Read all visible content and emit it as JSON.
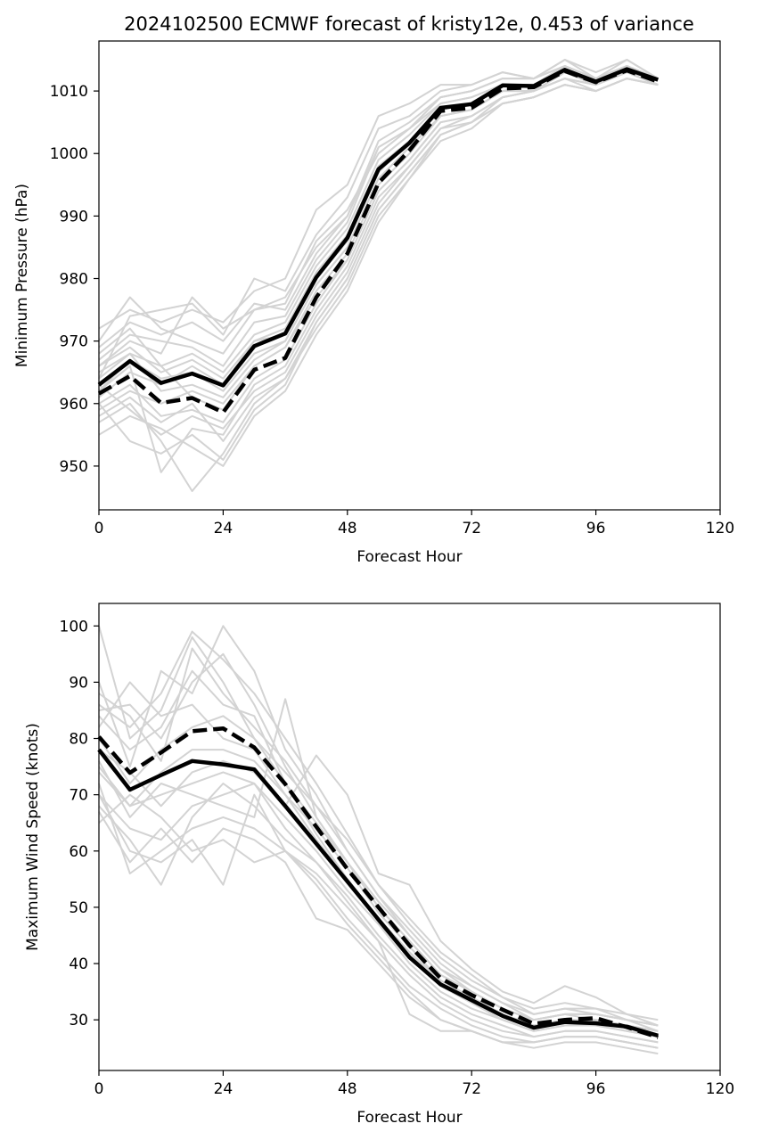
{
  "chart_data": [
    {
      "type": "line",
      "title": "2024102500 ECMWF forecast of kristy12e, 0.453 of variance",
      "xlabel": "Forecast Hour",
      "ylabel": "Minimum Pressure (hPa)",
      "xlim": [
        0,
        120
      ],
      "ylim": [
        943,
        1018
      ],
      "xticks": [
        0,
        24,
        48,
        72,
        96,
        120
      ],
      "yticks": [
        950,
        960,
        970,
        980,
        990,
        1000,
        1010
      ],
      "x": [
        0,
        6,
        12,
        18,
        24,
        30,
        36,
        42,
        48,
        54,
        60,
        66,
        72,
        78,
        84,
        90,
        96,
        102,
        108
      ],
      "series": [
        {
          "style": "solid",
          "color": "#000000",
          "values": [
            963.0,
            966.8,
            963.3,
            964.8,
            962.9,
            969.2,
            971.2,
            980.2,
            986.5,
            997.5,
            1001.7,
            1007.3,
            1007.9,
            1010.9,
            1010.8,
            1013.4,
            1011.5,
            1013.5,
            1011.8
          ]
        },
        {
          "style": "dashed",
          "color": "#000000",
          "values": [
            961.6,
            964.4,
            960.1,
            960.9,
            958.6,
            965.4,
            967.3,
            977.0,
            984.0,
            995.3,
            1000.5,
            1006.8,
            1007.3,
            1010.4,
            1010.6,
            1013.2,
            1011.4,
            1013.3,
            1011.5
          ]
        }
      ],
      "ensemble_color": "#d3d3d3",
      "ensemble": [
        [
          965,
          968,
          962,
          963,
          961,
          967,
          970,
          979,
          985,
          996,
          1001,
          1006,
          1007,
          1010,
          1011,
          1013,
          1011,
          1013,
          1012
        ],
        [
          968,
          972,
          966,
          968,
          965,
          971,
          973,
          982,
          988,
          999,
          1003,
          1008,
          1009,
          1011,
          1011,
          1014,
          1012,
          1014,
          1012
        ],
        [
          960,
          963,
          958,
          959,
          957,
          964,
          967,
          976,
          983,
          994,
          999,
          1005,
          1006,
          1009,
          1010,
          1012,
          1011,
          1013,
          1011
        ],
        [
          970,
          977,
          972,
          970,
          968,
          975,
          977,
          985,
          990,
          1002,
          1005,
          1009,
          1010,
          1012,
          1012,
          1015,
          1012,
          1015,
          1012
        ],
        [
          957,
          960,
          954,
          946,
          952,
          960,
          964,
          973,
          980,
          991,
          997,
          1003,
          1005,
          1008,
          1009,
          1011,
          1010,
          1012,
          1011
        ],
        [
          962,
          966,
          949,
          956,
          955,
          963,
          966,
          975,
          982,
          993,
          998,
          1004,
          1006,
          1009,
          1010,
          1012,
          1011,
          1013,
          1011
        ],
        [
          966,
          970,
          968,
          977,
          972,
          975,
          976,
          986,
          991,
          1000,
          1004,
          1008,
          1009,
          1011,
          1011,
          1014,
          1012,
          1014,
          1012
        ],
        [
          959,
          962,
          960,
          962,
          960,
          966,
          969,
          978,
          984,
          995,
          1000,
          1006,
          1007,
          1010,
          1010,
          1013,
          1011,
          1013,
          1011
        ],
        [
          964,
          974,
          975,
          976,
          971,
          980,
          978,
          987,
          993,
          1004,
          1006,
          1010,
          1011,
          1013,
          1012,
          1014,
          1012,
          1014,
          1012
        ],
        [
          955,
          958,
          956,
          953,
          950,
          958,
          962,
          971,
          978,
          989,
          996,
          1002,
          1004,
          1008,
          1009,
          1011,
          1010,
          1012,
          1011
        ],
        [
          967,
          971,
          970,
          969,
          966,
          973,
          974,
          983,
          989,
          1001,
          1004,
          1009,
          1010,
          1012,
          1012,
          1014,
          1012,
          1014,
          1012
        ],
        [
          961,
          965,
          963,
          966,
          963,
          970,
          972,
          981,
          987,
          998,
          1002,
          1007,
          1008,
          1011,
          1011,
          1013,
          1011,
          1013,
          1011
        ],
        [
          963,
          959,
          955,
          958,
          956,
          962,
          965,
          974,
          981,
          992,
          998,
          1004,
          1005,
          1009,
          1010,
          1012,
          1010,
          1012,
          1011
        ],
        [
          972,
          975,
          973,
          975,
          973,
          978,
          980,
          991,
          995,
          1006,
          1008,
          1011,
          1011,
          1013,
          1012,
          1015,
          1013,
          1015,
          1012
        ],
        [
          958,
          961,
          957,
          960,
          954,
          961,
          964,
          972,
          979,
          990,
          996,
          1003,
          1005,
          1008,
          1009,
          1011,
          1010,
          1012,
          1011
        ],
        [
          966,
          969,
          965,
          967,
          964,
          970,
          971,
          980,
          986,
          997,
          1002,
          1007,
          1008,
          1011,
          1011,
          1013,
          1011,
          1013,
          1012
        ],
        [
          960,
          954,
          952,
          955,
          951,
          959,
          963,
          973,
          980,
          991,
          997,
          1003,
          1005,
          1008,
          1009,
          1011,
          1010,
          1012,
          1011
        ],
        [
          969,
          973,
          971,
          973,
          970,
          976,
          975,
          984,
          990,
          1001,
          1004,
          1009,
          1010,
          1012,
          1012,
          1014,
          1012,
          1014,
          1012
        ],
        [
          962,
          967,
          964,
          965,
          962,
          968,
          970,
          979,
          985,
          996,
          1001,
          1006,
          1007,
          1010,
          1010,
          1013,
          1011,
          1013,
          1011
        ],
        [
          964,
          968,
          966,
          961,
          959,
          966,
          969,
          977,
          983,
          994,
          999,
          1005,
          1006,
          1009,
          1010,
          1012,
          1011,
          1013,
          1011
        ]
      ]
    },
    {
      "type": "line",
      "xlabel": "Forecast Hour",
      "ylabel": "Maximum Wind Speed (knots)",
      "xlim": [
        0,
        120
      ],
      "ylim": [
        21,
        104
      ],
      "xticks": [
        0,
        24,
        48,
        72,
        96,
        120
      ],
      "yticks": [
        30,
        40,
        50,
        60,
        70,
        80,
        90,
        100
      ],
      "x": [
        0,
        6,
        12,
        18,
        24,
        30,
        36,
        42,
        48,
        54,
        60,
        66,
        72,
        78,
        84,
        90,
        96,
        102,
        108
      ],
      "series": [
        {
          "style": "solid",
          "color": "#000000",
          "values": [
            78.0,
            70.9,
            73.5,
            76.0,
            75.4,
            74.5,
            68.0,
            61.3,
            54.6,
            47.8,
            41.1,
            36.3,
            33.5,
            30.7,
            28.6,
            29.6,
            29.4,
            28.8,
            27.2
          ]
        },
        {
          "style": "dashed",
          "color": "#000000",
          "values": [
            80.3,
            73.9,
            77.5,
            81.3,
            81.8,
            78.4,
            71.9,
            64.3,
            56.8,
            50.0,
            43.2,
            37.4,
            34.4,
            31.8,
            29.3,
            30.0,
            30.3,
            28.7,
            26.9
          ]
        }
      ],
      "ensemble_color": "#d3d3d3",
      "ensemble": [
        [
          100,
          80,
          85,
          98,
          90,
          80,
          72,
          63,
          55,
          48,
          42,
          37,
          34,
          31,
          29,
          30,
          30,
          29,
          28
        ],
        [
          75,
          68,
          70,
          72,
          74,
          72,
          66,
          60,
          53,
          47,
          40,
          35,
          32,
          30,
          28,
          29,
          29,
          28,
          27
        ],
        [
          85,
          86,
          80,
          90,
          95,
          86,
          75,
          66,
          58,
          50,
          44,
          38,
          35,
          32,
          30,
          31,
          31,
          30,
          29
        ],
        [
          70,
          60,
          58,
          62,
          54,
          70,
          60,
          55,
          48,
          42,
          36,
          32,
          29,
          27,
          26,
          27,
          27,
          26,
          25
        ],
        [
          90,
          75,
          92,
          88,
          100,
          92,
          78,
          70,
          60,
          52,
          46,
          40,
          36,
          33,
          30,
          31,
          30,
          29,
          28
        ],
        [
          68,
          62,
          54,
          66,
          72,
          68,
          62,
          58,
          52,
          45,
          39,
          34,
          31,
          29,
          27,
          28,
          28,
          27,
          26
        ],
        [
          80,
          72,
          78,
          82,
          84,
          80,
          74,
          68,
          62,
          54,
          48,
          42,
          38,
          34,
          32,
          33,
          32,
          31,
          30
        ],
        [
          72,
          56,
          60,
          64,
          66,
          64,
          60,
          56,
          50,
          44,
          38,
          33,
          30,
          28,
          27,
          28,
          28,
          27,
          26
        ],
        [
          88,
          84,
          76,
          96,
          88,
          82,
          76,
          68,
          60,
          52,
          45,
          39,
          35,
          32,
          30,
          31,
          31,
          30,
          29
        ],
        [
          65,
          70,
          66,
          60,
          62,
          58,
          60,
          54,
          47,
          41,
          35,
          30,
          28,
          26,
          25,
          26,
          26,
          25,
          24
        ],
        [
          82,
          90,
          84,
          86,
          80,
          78,
          70,
          64,
          57,
          49,
          43,
          37,
          34,
          31,
          29,
          30,
          30,
          29,
          28
        ],
        [
          76,
          66,
          72,
          70,
          68,
          66,
          87,
          66,
          58,
          50,
          44,
          38,
          35,
          32,
          30,
          31,
          31,
          30,
          28
        ],
        [
          78,
          74,
          68,
          74,
          76,
          74,
          68,
          77,
          70,
          56,
          54,
          44,
          39,
          35,
          33,
          36,
          34,
          31,
          29
        ],
        [
          70,
          64,
          62,
          68,
          70,
          72,
          64,
          58,
          51,
          44,
          31,
          28,
          28,
          26,
          26,
          27,
          27,
          26,
          25
        ],
        [
          84,
          78,
          82,
          92,
          86,
          84,
          72,
          65,
          58,
          51,
          45,
          39,
          36,
          33,
          31,
          32,
          31,
          30,
          29
        ],
        [
          74,
          68,
          74,
          78,
          78,
          76,
          70,
          62,
          55,
          48,
          42,
          36,
          33,
          30,
          28,
          29,
          29,
          28,
          27
        ],
        [
          67,
          58,
          64,
          58,
          64,
          62,
          58,
          48,
          46,
          40,
          34,
          30,
          28,
          26,
          26,
          27,
          27,
          26,
          25
        ],
        [
          86,
          82,
          88,
          99,
          94,
          88,
          80,
          72,
          63,
          54,
          47,
          41,
          37,
          34,
          31,
          32,
          32,
          30,
          29
        ]
      ]
    }
  ]
}
